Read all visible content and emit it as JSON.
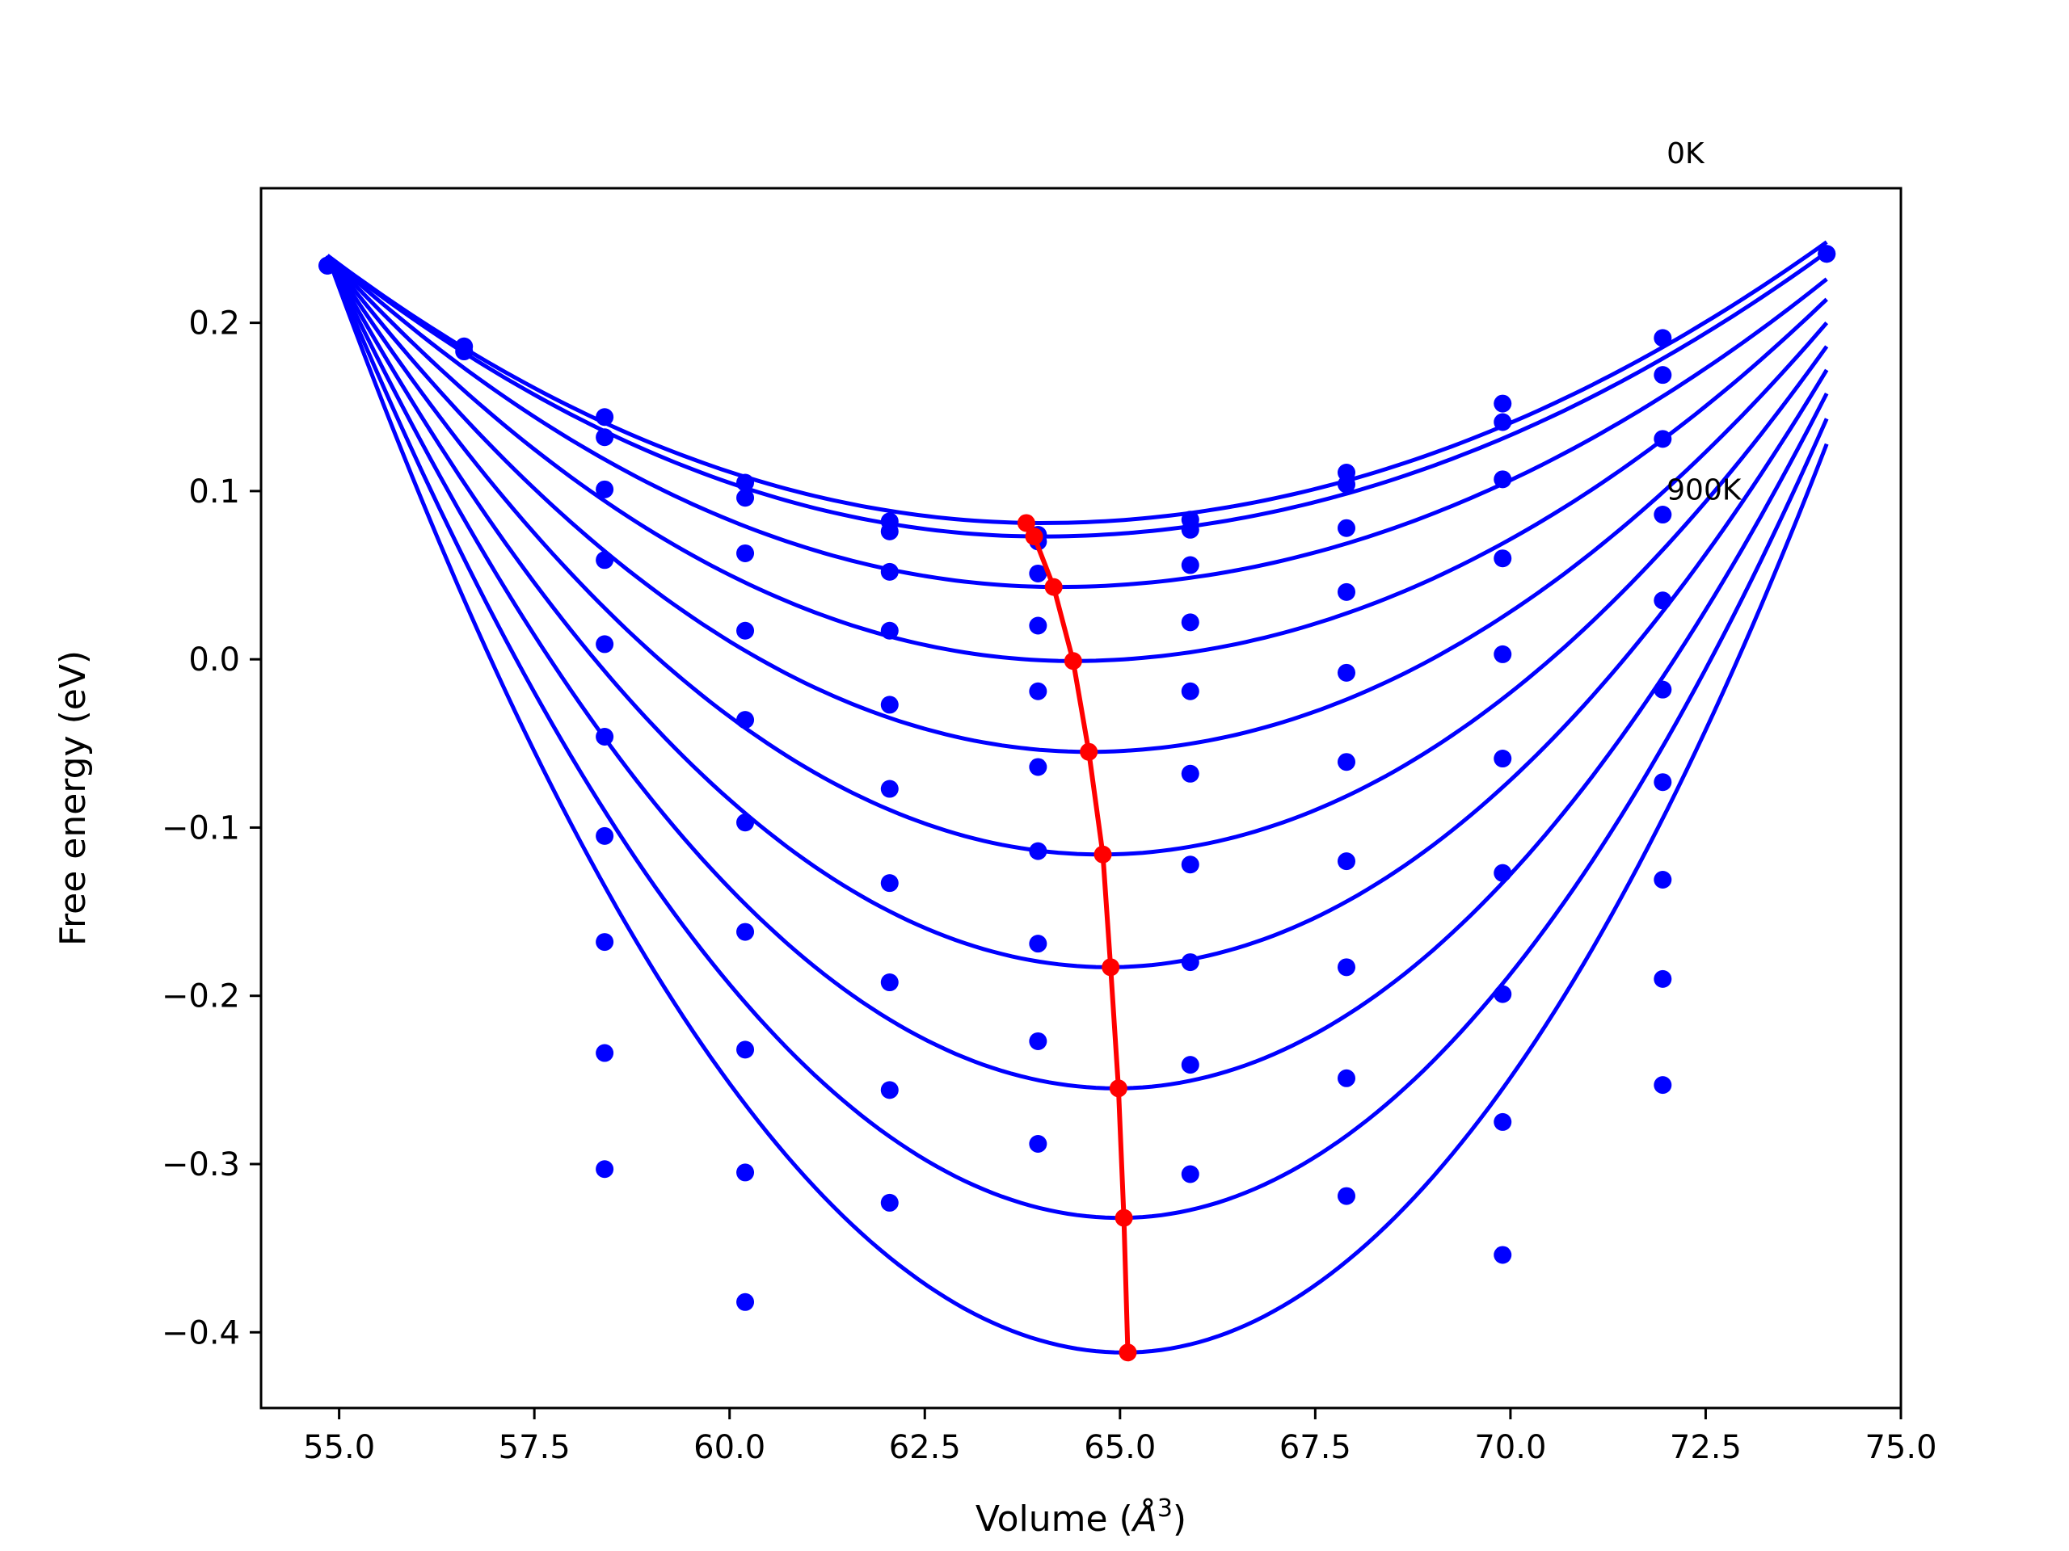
{
  "chart_data": {
    "type": "scatter",
    "xlabel_prefix": "Volume (",
    "xlabel_unit": "Å",
    "xlabel_sup": "3",
    "xlabel_suffix": ")",
    "ylabel": "Free energy (eV)",
    "xlim": [
      54.0,
      75.0
    ],
    "ylim": [
      -0.445,
      0.28
    ],
    "xticks": [
      55.0,
      57.5,
      60.0,
      62.5,
      65.0,
      67.5,
      70.0,
      72.5,
      75.0
    ],
    "xtick_labels": [
      "55.0",
      "57.5",
      "60.0",
      "62.5",
      "65.0",
      "67.5",
      "70.0",
      "72.5",
      "75.0"
    ],
    "yticks": [
      0.2,
      0.1,
      0.0,
      -0.1,
      -0.2,
      -0.3,
      -0.4
    ],
    "ytick_labels": [
      "0.2",
      "0.1",
      "0.0",
      "−0.1",
      "−0.2",
      "−0.3",
      "−0.4"
    ],
    "grid": false,
    "annotations": [
      {
        "text": "0K",
        "x": 72.0,
        "y": 0.295
      },
      {
        "text": "900K",
        "x": 72.0,
        "y": 0.095
      }
    ],
    "curve_color": "#0000ff",
    "points_color": "#0000ff",
    "min_line_color": "#ff0000",
    "x_points": [
      54.85,
      56.6,
      58.4,
      60.2,
      62.05,
      63.95,
      65.9,
      67.9,
      69.9,
      71.95,
      74.05
    ],
    "point_series": [
      {
        "values": [
          0.234,
          0.186,
          0.144,
          0.105,
          0.082,
          0.074,
          0.083,
          0.111,
          0.152,
          0.191,
          0.241
        ]
      },
      {
        "values": [
          0.234,
          0.183,
          0.132,
          0.096,
          0.076,
          0.07,
          0.077,
          0.104,
          0.141,
          0.169,
          0.241
        ]
      },
      {
        "values": [
          0.234,
          null,
          0.101,
          0.063,
          0.052,
          0.051,
          0.056,
          0.078,
          0.107,
          0.131,
          null
        ]
      },
      {
        "values": [
          null,
          null,
          0.059,
          0.017,
          0.017,
          0.02,
          0.022,
          0.04,
          0.06,
          0.086,
          null
        ]
      },
      {
        "values": [
          null,
          null,
          0.009,
          -0.036,
          -0.027,
          -0.019,
          -0.019,
          -0.008,
          0.003,
          0.035,
          null
        ]
      },
      {
        "values": [
          null,
          null,
          -0.046,
          -0.097,
          -0.077,
          -0.064,
          -0.068,
          -0.061,
          -0.059,
          -0.018,
          null
        ]
      },
      {
        "values": [
          null,
          null,
          -0.105,
          -0.162,
          -0.133,
          -0.114,
          -0.122,
          -0.12,
          -0.127,
          -0.073,
          null
        ]
      },
      {
        "values": [
          null,
          null,
          -0.168,
          -0.232,
          -0.192,
          -0.169,
          -0.18,
          -0.183,
          -0.199,
          -0.131,
          null
        ]
      },
      {
        "values": [
          null,
          null,
          -0.234,
          -0.305,
          -0.256,
          -0.227,
          -0.241,
          -0.249,
          -0.275,
          -0.19,
          null
        ]
      },
      {
        "values": [
          null,
          null,
          -0.303,
          -0.382,
          -0.323,
          -0.288,
          -0.306,
          -0.319,
          -0.354,
          -0.253,
          null
        ]
      }
    ],
    "curves": [
      {
        "x0": 54.85,
        "x1": 74.05,
        "vmin": 64.0,
        "fmin": 0.081,
        "y_left": 0.24,
        "y_right": 0.248
      },
      {
        "x0": 54.85,
        "x1": 74.05,
        "vmin": 64.0,
        "fmin": 0.073,
        "y_left": 0.24,
        "y_right": 0.242
      },
      {
        "x0": 54.85,
        "x1": 74.05,
        "vmin": 64.2,
        "fmin": 0.043,
        "y_left": 0.24,
        "y_right": 0.226
      },
      {
        "x0": 54.85,
        "x1": 74.05,
        "vmin": 64.4,
        "fmin": -0.001,
        "y_left": 0.24,
        "y_right": 0.214
      },
      {
        "x0": 54.85,
        "x1": 74.05,
        "vmin": 64.6,
        "fmin": -0.055,
        "y_left": 0.24,
        "y_right": 0.2
      },
      {
        "x0": 54.85,
        "x1": 74.05,
        "vmin": 64.75,
        "fmin": -0.116,
        "y_left": 0.24,
        "y_right": 0.186
      },
      {
        "x0": 54.85,
        "x1": 74.05,
        "vmin": 64.85,
        "fmin": -0.183,
        "y_left": 0.24,
        "y_right": 0.172
      },
      {
        "x0": 54.85,
        "x1": 74.05,
        "vmin": 64.95,
        "fmin": -0.255,
        "y_left": 0.24,
        "y_right": 0.158
      },
      {
        "x0": 54.85,
        "x1": 74.05,
        "vmin": 65.0,
        "fmin": -0.332,
        "y_left": 0.24,
        "y_right": 0.143
      },
      {
        "x0": 54.85,
        "x1": 74.05,
        "vmin": 65.05,
        "fmin": -0.412,
        "y_left": 0.24,
        "y_right": 0.128
      }
    ],
    "min_line": {
      "x": [
        63.8,
        63.9,
        64.15,
        64.4,
        64.6,
        64.78,
        64.88,
        64.98,
        65.05,
        65.1
      ],
      "y": [
        0.081,
        0.073,
        0.043,
        -0.001,
        -0.055,
        -0.116,
        -0.183,
        -0.255,
        -0.332,
        -0.412
      ]
    }
  }
}
